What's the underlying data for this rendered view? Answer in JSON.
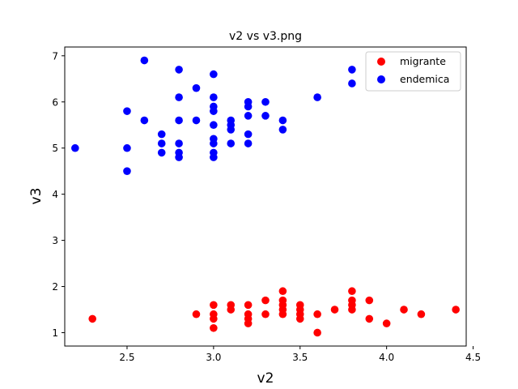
{
  "chart_data": {
    "type": "scatter",
    "title": "v2 vs v3.png",
    "xlabel": "v2",
    "ylabel": "v3",
    "xlim": [
      2.14,
      4.46
    ],
    "ylim": [
      0.71,
      7.19
    ],
    "xticks": [
      "2.5",
      "3.0",
      "3.5",
      "4.0",
      "4.5"
    ],
    "yticks": [
      "1",
      "2",
      "3",
      "4",
      "5",
      "6",
      "7"
    ],
    "grid": false,
    "legend_position": "top-right",
    "series": [
      {
        "name": "migrante",
        "color": "#ff0000",
        "points": [
          [
            2.3,
            1.3
          ],
          [
            2.9,
            1.4
          ],
          [
            3.0,
            1.1
          ],
          [
            3.0,
            1.3
          ],
          [
            3.0,
            1.4
          ],
          [
            3.0,
            1.6
          ],
          [
            3.1,
            1.5
          ],
          [
            3.1,
            1.6
          ],
          [
            3.2,
            1.2
          ],
          [
            3.2,
            1.3
          ],
          [
            3.2,
            1.4
          ],
          [
            3.2,
            1.6
          ],
          [
            3.3,
            1.4
          ],
          [
            3.3,
            1.7
          ],
          [
            3.4,
            1.4
          ],
          [
            3.4,
            1.5
          ],
          [
            3.4,
            1.6
          ],
          [
            3.4,
            1.7
          ],
          [
            3.4,
            1.9
          ],
          [
            3.5,
            1.3
          ],
          [
            3.5,
            1.4
          ],
          [
            3.5,
            1.5
          ],
          [
            3.5,
            1.6
          ],
          [
            3.6,
            1.0
          ],
          [
            3.6,
            1.4
          ],
          [
            3.7,
            1.5
          ],
          [
            3.8,
            1.5
          ],
          [
            3.8,
            1.6
          ],
          [
            3.8,
            1.7
          ],
          [
            3.8,
            1.9
          ],
          [
            3.9,
            1.3
          ],
          [
            3.9,
            1.7
          ],
          [
            4.0,
            1.2
          ],
          [
            4.1,
            1.5
          ],
          [
            4.2,
            1.4
          ],
          [
            4.4,
            1.5
          ]
        ]
      },
      {
        "name": "endemica",
        "color": "#0000ff",
        "points": [
          [
            2.2,
            5.0
          ],
          [
            2.5,
            4.5
          ],
          [
            2.5,
            5.0
          ],
          [
            2.5,
            5.8
          ],
          [
            2.6,
            5.6
          ],
          [
            2.6,
            6.9
          ],
          [
            2.7,
            4.9
          ],
          [
            2.7,
            5.1
          ],
          [
            2.7,
            5.3
          ],
          [
            2.8,
            4.8
          ],
          [
            2.8,
            4.9
          ],
          [
            2.8,
            5.1
          ],
          [
            2.8,
            5.6
          ],
          [
            2.8,
            6.1
          ],
          [
            2.8,
            6.7
          ],
          [
            2.9,
            5.6
          ],
          [
            2.9,
            6.3
          ],
          [
            3.0,
            4.8
          ],
          [
            3.0,
            4.9
          ],
          [
            3.0,
            5.1
          ],
          [
            3.0,
            5.2
          ],
          [
            3.0,
            5.5
          ],
          [
            3.0,
            5.8
          ],
          [
            3.0,
            5.9
          ],
          [
            3.0,
            6.1
          ],
          [
            3.0,
            6.6
          ],
          [
            3.1,
            5.1
          ],
          [
            3.1,
            5.4
          ],
          [
            3.1,
            5.5
          ],
          [
            3.1,
            5.6
          ],
          [
            3.2,
            5.1
          ],
          [
            3.2,
            5.3
          ],
          [
            3.2,
            5.7
          ],
          [
            3.2,
            5.9
          ],
          [
            3.2,
            6.0
          ],
          [
            3.3,
            5.7
          ],
          [
            3.3,
            6.0
          ],
          [
            3.4,
            5.4
          ],
          [
            3.4,
            5.6
          ],
          [
            3.6,
            6.1
          ],
          [
            3.8,
            6.4
          ],
          [
            3.8,
            6.7
          ]
        ]
      }
    ]
  }
}
